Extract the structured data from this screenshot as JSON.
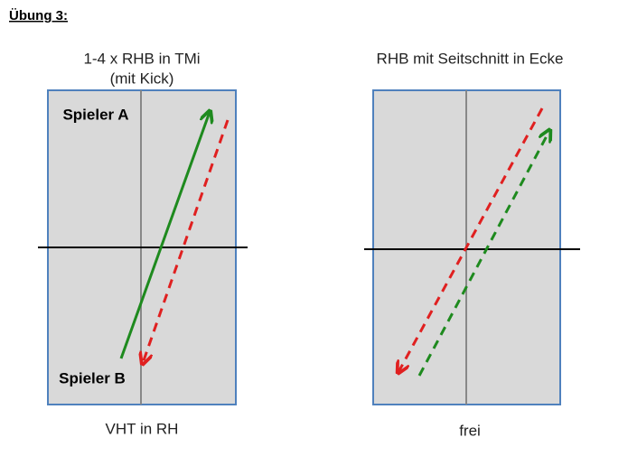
{
  "header": {
    "title": "Übung 3:"
  },
  "panels": [
    {
      "title": [
        "1-4 x RHB in TMi",
        "(mit Kick)"
      ],
      "labels": [
        "Spieler A",
        "Spieler B"
      ],
      "caption": "VHT in RH"
    },
    {
      "title": [
        "RHB mit Seitschnitt in Ecke"
      ],
      "caption": "frei"
    }
  ]
}
